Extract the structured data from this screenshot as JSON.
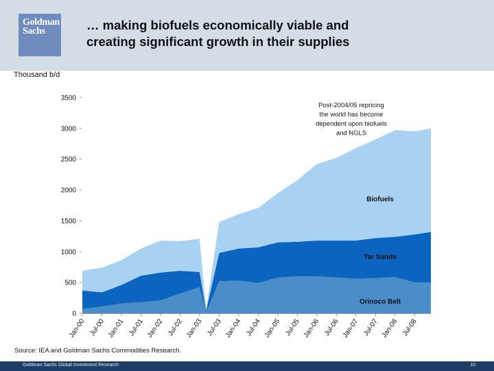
{
  "header": {
    "logo_text": [
      "Goldman",
      "Sachs"
    ],
    "title_lines": [
      "… making biofuels economically viable and",
      "creating significant growth in their supplies"
    ]
  },
  "unit_label": "Thousand b/d",
  "source": "Source: IEA and Goldman Sachs Commodities Research.",
  "footer": {
    "text": "Goldman Sachs Global Investment Research",
    "page": "10"
  },
  "colors": {
    "header_band": "#d4dce6",
    "logo": "#6f8cbf",
    "footer": "#1e3d66"
  },
  "chart_data": {
    "type": "area",
    "stacked": true,
    "ylim": [
      0,
      3500
    ],
    "yticks": [
      0,
      500,
      1000,
      1500,
      2000,
      2500,
      3000,
      3500
    ],
    "xticks": [
      "Jan-00",
      "Jul-00",
      "Jan-01",
      "Jul-01",
      "Jan-02",
      "Jul-02",
      "Jan-03",
      "Jul-03",
      "Jan-04",
      "Jul-04",
      "Jan-05",
      "Jul-05",
      "Jan-06",
      "Jul-06",
      "Jan-07",
      "Jul-07",
      "Jan-08",
      "Jul-08"
    ],
    "x": [
      "Jan-00",
      "Jul-00",
      "Jan-01",
      "Jul-01",
      "Jan-02",
      "Jul-02",
      "Jan-03",
      "Mar-03",
      "Jul-03",
      "Jan-04",
      "Jul-04",
      "Jan-05",
      "Jul-05",
      "Jan-06",
      "Jul-06",
      "Jan-07",
      "Jul-07",
      "Jan-08",
      "Jul-08",
      "Dec-08"
    ],
    "series": [
      {
        "name": "Orinoco Belt",
        "color": "#4a8dc8",
        "values": [
          70,
          110,
          160,
          180,
          210,
          320,
          420,
          10,
          520,
          530,
          490,
          580,
          600,
          600,
          580,
          560,
          570,
          590,
          500,
          500
        ]
      },
      {
        "name": "Tar Sands",
        "color": "#0a64c0",
        "values": [
          300,
          230,
          300,
          430,
          450,
          370,
          250,
          30,
          460,
          520,
          580,
          570,
          560,
          580,
          600,
          620,
          650,
          650,
          780,
          820
        ]
      },
      {
        "name": "Biofuels",
        "color": "#a9d2f2",
        "values": [
          320,
          400,
          400,
          440,
          520,
          480,
          540,
          10,
          500,
          560,
          640,
          800,
          1000,
          1240,
          1340,
          1500,
          1600,
          1730,
          1670,
          1680
        ]
      }
    ],
    "series_label_positions": [
      "bottom-right",
      "middle-right",
      "upper-right"
    ],
    "annotation": [
      "Post-2004/05 repricing",
      "the world has become",
      "dependent upon biofuels",
      "and NGLS"
    ]
  }
}
